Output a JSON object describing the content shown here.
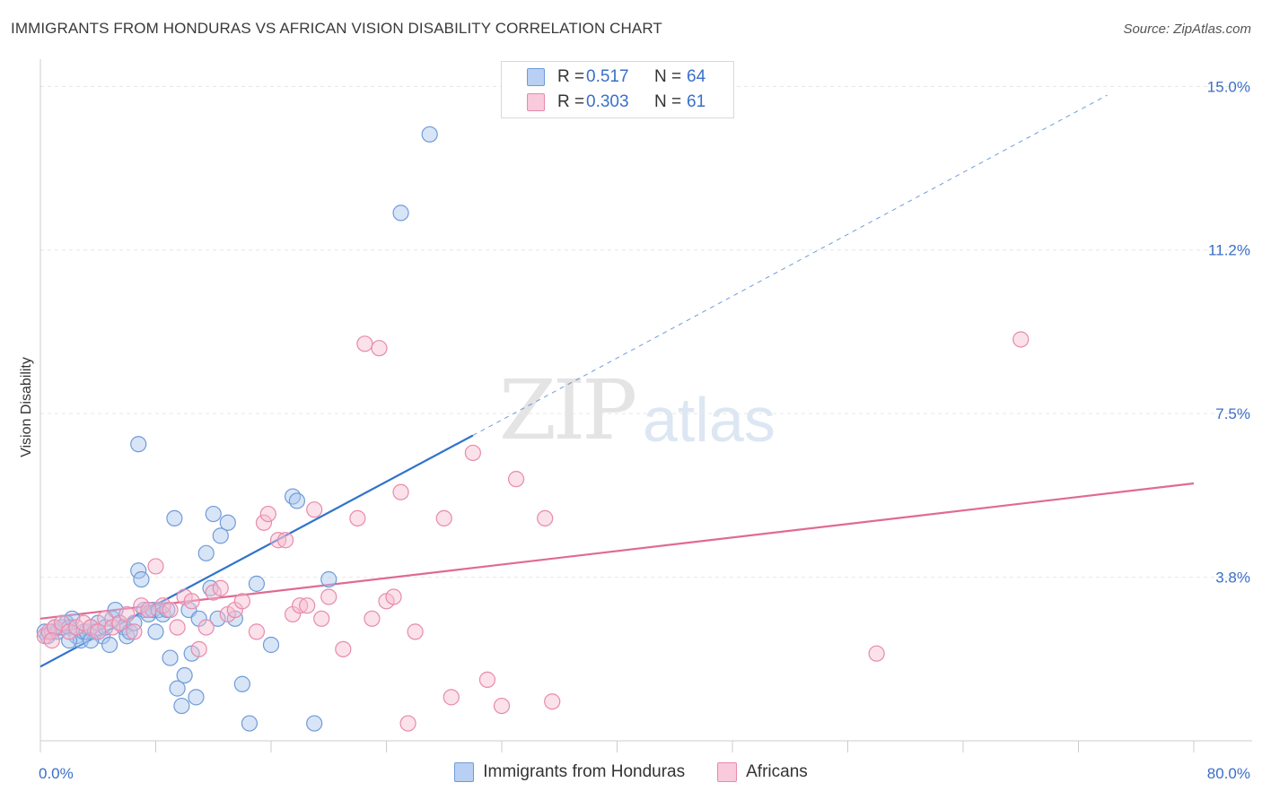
{
  "chart_data": {
    "type": "scatter",
    "title": "IMMIGRANTS FROM HONDURAS VS AFRICAN VISION DISABILITY CORRELATION CHART",
    "source": "Source: ZipAtlas.com",
    "xlabel": "",
    "ylabel": "Vision Disability",
    "xlim": [
      0,
      80
    ],
    "ylim": [
      0,
      15.5
    ],
    "x_tick_labels": [
      "0.0%",
      "80.0%"
    ],
    "y_ticks": [
      3.75,
      7.5,
      11.25,
      15.0
    ],
    "y_tick_labels": [
      "3.8%",
      "7.5%",
      "11.2%",
      "15.0%"
    ],
    "watermark": [
      "ZIP",
      "atlas"
    ],
    "legend_position": "top-center",
    "series": [
      {
        "name": "Immigrants from Honduras",
        "color": "#a9c6ee",
        "edge": "#6f9bd8",
        "line_color": "#2f73cc",
        "R": "0.517",
        "N": "64",
        "trend": {
          "x0": 0,
          "y0": 1.7,
          "x1": 30,
          "y1": 7.0,
          "x_dash_end": 74,
          "y_dash_end": 14.8
        },
        "points": [
          [
            0.3,
            2.5
          ],
          [
            0.5,
            2.4
          ],
          [
            0.8,
            2.5
          ],
          [
            1.0,
            2.6
          ],
          [
            1.2,
            2.5
          ],
          [
            1.5,
            2.6
          ],
          [
            1.8,
            2.7
          ],
          [
            2.0,
            2.6
          ],
          [
            2.2,
            2.8
          ],
          [
            2.5,
            2.4
          ],
          [
            2.8,
            2.3
          ],
          [
            3.0,
            2.5
          ],
          [
            3.2,
            2.5
          ],
          [
            3.5,
            2.6
          ],
          [
            3.8,
            2.5
          ],
          [
            4.0,
            2.7
          ],
          [
            4.3,
            2.4
          ],
          [
            4.5,
            2.6
          ],
          [
            4.8,
            2.2
          ],
          [
            5.0,
            2.8
          ],
          [
            5.2,
            3.0
          ],
          [
            5.5,
            2.7
          ],
          [
            5.8,
            2.6
          ],
          [
            6.0,
            2.4
          ],
          [
            6.2,
            2.5
          ],
          [
            6.5,
            2.7
          ],
          [
            6.8,
            3.9
          ],
          [
            7.0,
            3.7
          ],
          [
            7.2,
            3.0
          ],
          [
            7.5,
            2.9
          ],
          [
            7.8,
            3.0
          ],
          [
            8.0,
            2.5
          ],
          [
            8.2,
            3.0
          ],
          [
            8.5,
            2.9
          ],
          [
            8.8,
            3.0
          ],
          [
            9.0,
            1.9
          ],
          [
            9.5,
            1.2
          ],
          [
            9.8,
            0.8
          ],
          [
            10.0,
            1.5
          ],
          [
            10.3,
            3.0
          ],
          [
            10.5,
            2.0
          ],
          [
            10.8,
            1.0
          ],
          [
            11.0,
            2.8
          ],
          [
            11.5,
            4.3
          ],
          [
            11.8,
            3.5
          ],
          [
            12.0,
            5.2
          ],
          [
            12.3,
            2.8
          ],
          [
            12.5,
            4.7
          ],
          [
            13.0,
            5.0
          ],
          [
            13.5,
            2.8
          ],
          [
            14.0,
            1.3
          ],
          [
            14.5,
            0.4
          ],
          [
            15.0,
            3.6
          ],
          [
            16.0,
            2.2
          ],
          [
            17.5,
            5.6
          ],
          [
            17.8,
            5.5
          ],
          [
            19.0,
            0.4
          ],
          [
            20.0,
            3.7
          ],
          [
            25.0,
            12.1
          ],
          [
            27.0,
            13.9
          ],
          [
            6.8,
            6.8
          ],
          [
            9.3,
            5.1
          ],
          [
            3.5,
            2.3
          ],
          [
            2.0,
            2.3
          ]
        ]
      },
      {
        "name": "Africans",
        "color": "#f6bcd0",
        "edge": "#e88aab",
        "line_color": "#e06a95",
        "R": "0.303",
        "N": "61",
        "trend": {
          "x0": 0,
          "y0": 2.8,
          "x1": 80,
          "y1": 5.9
        },
        "points": [
          [
            0.3,
            2.4
          ],
          [
            0.6,
            2.5
          ],
          [
            1.0,
            2.6
          ],
          [
            1.5,
            2.7
          ],
          [
            2.0,
            2.5
          ],
          [
            2.5,
            2.6
          ],
          [
            3.0,
            2.7
          ],
          [
            3.5,
            2.6
          ],
          [
            4.0,
            2.5
          ],
          [
            4.5,
            2.8
          ],
          [
            5.0,
            2.6
          ],
          [
            5.5,
            2.7
          ],
          [
            6.0,
            2.9
          ],
          [
            6.5,
            2.5
          ],
          [
            7.0,
            3.1
          ],
          [
            7.5,
            3.0
          ],
          [
            8.0,
            4.0
          ],
          [
            8.5,
            3.1
          ],
          [
            9.0,
            3.0
          ],
          [
            9.5,
            2.6
          ],
          [
            10.0,
            3.3
          ],
          [
            10.5,
            3.2
          ],
          [
            11.0,
            2.1
          ],
          [
            11.5,
            2.6
          ],
          [
            12.0,
            3.4
          ],
          [
            12.5,
            3.5
          ],
          [
            13.0,
            2.9
          ],
          [
            13.5,
            3.0
          ],
          [
            14.0,
            3.2
          ],
          [
            15.0,
            2.5
          ],
          [
            15.5,
            5.0
          ],
          [
            15.8,
            5.2
          ],
          [
            16.5,
            4.6
          ],
          [
            17.0,
            4.6
          ],
          [
            17.5,
            2.9
          ],
          [
            18.0,
            3.1
          ],
          [
            18.5,
            3.1
          ],
          [
            19.0,
            5.3
          ],
          [
            19.5,
            2.8
          ],
          [
            20.0,
            3.3
          ],
          [
            21.0,
            2.1
          ],
          [
            22.0,
            5.1
          ],
          [
            22.5,
            9.1
          ],
          [
            23.0,
            2.8
          ],
          [
            23.5,
            9.0
          ],
          [
            24.0,
            3.2
          ],
          [
            24.5,
            3.3
          ],
          [
            25.0,
            5.7
          ],
          [
            25.5,
            0.4
          ],
          [
            26.0,
            2.5
          ],
          [
            28.0,
            5.1
          ],
          [
            28.5,
            1.0
          ],
          [
            30.0,
            6.6
          ],
          [
            31.0,
            1.4
          ],
          [
            32.0,
            0.8
          ],
          [
            33.0,
            6.0
          ],
          [
            35.0,
            5.1
          ],
          [
            35.5,
            0.9
          ],
          [
            58.0,
            2.0
          ],
          [
            68.0,
            9.2
          ],
          [
            0.8,
            2.3
          ]
        ]
      }
    ]
  },
  "legend": {
    "r_label": "R =",
    "n_label": "N =",
    "series_a_label": "Immigrants from Honduras",
    "series_b_label": "Africans"
  }
}
